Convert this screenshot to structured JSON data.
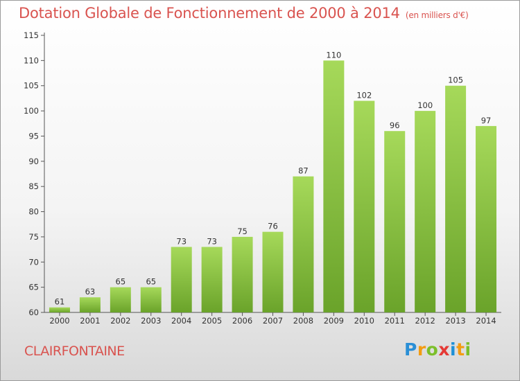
{
  "header": {
    "title": "Dotation Globale de Fonctionnement de 2000 à 2014",
    "subtitle": "(en milliers d'€)"
  },
  "footer": {
    "town": "CLAIRFONTAINE",
    "logo": "Proxiti"
  },
  "colors": {
    "bar_light": "#a6d95a",
    "bar_dark": "#6aa32a",
    "title": "#d9534f"
  },
  "chart_data": {
    "type": "bar",
    "title": "Dotation Globale de Fonctionnement de 2000 à 2014",
    "subtitle": "(en milliers d'€)",
    "xlabel": "",
    "ylabel": "",
    "categories": [
      "2000",
      "2001",
      "2002",
      "2003",
      "2004",
      "2005",
      "2006",
      "2007",
      "2008",
      "2009",
      "2010",
      "2011",
      "2012",
      "2013",
      "2014"
    ],
    "values": [
      61,
      63,
      65,
      65,
      73,
      73,
      75,
      76,
      87,
      110,
      102,
      96,
      100,
      105,
      97
    ],
    "ylim": [
      60,
      115
    ],
    "yticks": [
      60,
      65,
      70,
      75,
      80,
      85,
      90,
      95,
      100,
      105,
      110,
      115
    ],
    "grid": false,
    "data_labels": true
  }
}
